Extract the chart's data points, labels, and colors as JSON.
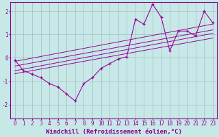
{
  "xlabel": "Windchill (Refroidissement éolien,°C)",
  "x_ticks": [
    0,
    1,
    2,
    3,
    4,
    5,
    6,
    7,
    8,
    9,
    10,
    11,
    12,
    13,
    14,
    15,
    16,
    17,
    18,
    19,
    20,
    21,
    22,
    23
  ],
  "ylim": [
    -2.6,
    2.4
  ],
  "xlim": [
    -0.5,
    23.5
  ],
  "yticks": [
    -2,
    -1,
    0,
    1,
    2
  ],
  "main_data": {
    "x": [
      0,
      1,
      2,
      3,
      4,
      5,
      6,
      7,
      8,
      9,
      10,
      11,
      12,
      13,
      14,
      15,
      16,
      17,
      18,
      19,
      20,
      21,
      22,
      23
    ],
    "y": [
      -0.1,
      -0.55,
      -0.7,
      -0.85,
      -1.1,
      -1.25,
      -1.55,
      -1.85,
      -1.1,
      -0.85,
      -0.45,
      -0.25,
      -0.05,
      0.05,
      1.65,
      1.45,
      2.3,
      1.75,
      0.3,
      1.15,
      1.15,
      0.95,
      2.0,
      1.5
    ]
  },
  "line1": {
    "x": [
      0,
      23
    ],
    "y": [
      -0.55,
      1.05
    ]
  },
  "line2": {
    "x": [
      0,
      23
    ],
    "y": [
      -0.35,
      1.2
    ]
  },
  "line3": {
    "x": [
      0,
      23
    ],
    "y": [
      -0.15,
      1.45
    ]
  },
  "line4": {
    "x": [
      0,
      23
    ],
    "y": [
      -0.68,
      0.85
    ]
  },
  "color": "#990099",
  "bg_color": "#c8e8e8",
  "grid_color": "#9bbfbf",
  "label_color": "#880088",
  "tick_label_size": 5.5,
  "xlabel_size": 6.5
}
